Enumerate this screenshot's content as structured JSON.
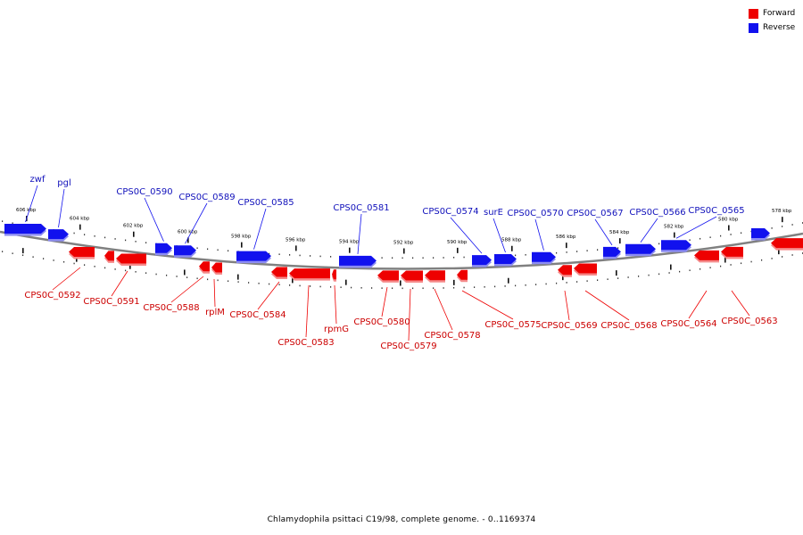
{
  "footer": "Chlamydophila psittaci C19/98, complete genome. - 0..1169374",
  "legend": [
    {
      "label": "Forward",
      "color": "#ee0000"
    },
    {
      "label": "Reverse",
      "color": "#1111ee"
    }
  ],
  "colors": {
    "forward": "#ee0000",
    "reverse": "#1111ee",
    "label_forward": "#cc0000",
    "label_reverse": "#1111bb"
  },
  "ticks": [
    "606 kbp",
    "604 kbp",
    "602 kbp",
    "600 kbp",
    "598 kbp",
    "596 kbp",
    "594 kbp",
    "592 kbp",
    "590 kbp",
    "588 kbp",
    "586 kbp",
    "584 kbp",
    "582 kbp",
    "580 kbp",
    "578 kbp"
  ],
  "genes_reverse": [
    "zwf",
    "pgl",
    "CPS0C_0590",
    "CPS0C_0589",
    "CPS0C_0585",
    "CPS0C_0581",
    "CPS0C_0574",
    "surE",
    "CPS0C_0570",
    "CPS0C_0567",
    "CPS0C_0566",
    "CPS0C_0565"
  ],
  "genes_forward": [
    "CPS0C_0592",
    "CPS0C_0591",
    "CPS0C_0588",
    "rplM",
    "CPS0C_0584",
    "CPS0C_0583",
    "rpmG",
    "CPS0C_0580",
    "CPS0C_0579",
    "CPS0C_0578",
    "CPS0C_0575",
    "CPS0C_0569",
    "CPS0C_0568",
    "CPS0C_0564",
    "CPS0C_0563"
  ]
}
